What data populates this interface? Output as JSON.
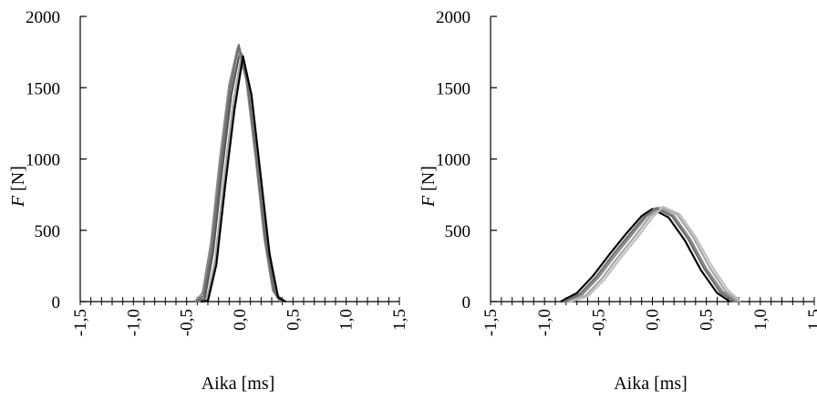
{
  "chart_data": [
    {
      "type": "line",
      "title": "",
      "xlabel": "Aika [ms]",
      "ylabel_italic": "F",
      "ylabel_unit": "[N]",
      "xlim": [
        -1.5,
        1.5
      ],
      "ylim": [
        0,
        2000
      ],
      "x_tick_labels": [
        "-1,5",
        "-1,0",
        "-0,5",
        "0,0",
        "0,5",
        "1,0",
        "1,5"
      ],
      "y_tick_labels": [
        "0",
        "500",
        "1000",
        "1500",
        "2000"
      ],
      "grid": false,
      "legend": "none",
      "series": [
        {
          "color": "#555555",
          "x": [
            -0.4,
            -0.33,
            -0.25,
            -0.17,
            -0.08,
            0.0,
            0.08,
            0.17,
            0.25,
            0.33,
            0.4
          ],
          "y": [
            0,
            20,
            350,
            900,
            1450,
            1750,
            1500,
            950,
            400,
            60,
            0
          ]
        },
        {
          "color": "#8a8a8a",
          "x": [
            -0.42,
            -0.35,
            -0.27,
            -0.19,
            -0.1,
            -0.02,
            0.06,
            0.15,
            0.23,
            0.31,
            0.38
          ],
          "y": [
            0,
            60,
            420,
            980,
            1520,
            1780,
            1560,
            1000,
            450,
            80,
            0
          ]
        },
        {
          "color": "#a5a5a5",
          "x": [
            -0.38,
            -0.31,
            -0.23,
            -0.15,
            -0.06,
            0.02,
            0.1,
            0.19,
            0.27,
            0.35,
            0.42
          ],
          "y": [
            0,
            10,
            300,
            850,
            1400,
            1740,
            1480,
            900,
            380,
            50,
            0
          ]
        },
        {
          "color": "#6f6f6f",
          "x": [
            -0.41,
            -0.34,
            -0.26,
            -0.18,
            -0.09,
            -0.01,
            0.07,
            0.16,
            0.24,
            0.32,
            0.39
          ],
          "y": [
            0,
            40,
            380,
            940,
            1490,
            1800,
            1540,
            980,
            420,
            70,
            0
          ]
        },
        {
          "color": "#000000",
          "x": [
            -0.37,
            -0.3,
            -0.22,
            -0.14,
            -0.05,
            0.03,
            0.11,
            0.2,
            0.28,
            0.36,
            0.43
          ],
          "y": [
            0,
            5,
            260,
            800,
            1350,
            1720,
            1450,
            860,
            330,
            30,
            0
          ]
        }
      ]
    },
    {
      "type": "line",
      "title": "",
      "xlabel": "Aika [ms]",
      "ylabel_italic": "F",
      "ylabel_unit": "[N]",
      "xlim": [
        -1.5,
        1.5
      ],
      "ylim": [
        0,
        2000
      ],
      "x_tick_labels": [
        "-1,5",
        "-1,0",
        "-0,5",
        "0,0",
        "0,5",
        "1,0",
        "1,5"
      ],
      "y_tick_labels": [
        "0",
        "500",
        "1000",
        "1500",
        "2000"
      ],
      "grid": false,
      "legend": "none",
      "series": [
        {
          "color": "#000000",
          "x": [
            -0.85,
            -0.7,
            -0.55,
            -0.4,
            -0.25,
            -0.1,
            0.0,
            0.15,
            0.3,
            0.45,
            0.6,
            0.72
          ],
          "y": [
            0,
            60,
            180,
            330,
            470,
            600,
            650,
            590,
            430,
            220,
            60,
            0
          ]
        },
        {
          "color": "#8a8a8a",
          "x": [
            -0.8,
            -0.65,
            -0.5,
            -0.35,
            -0.2,
            -0.05,
            0.05,
            0.2,
            0.35,
            0.5,
            0.65,
            0.78
          ],
          "y": [
            0,
            50,
            170,
            320,
            460,
            600,
            660,
            600,
            440,
            230,
            70,
            0
          ]
        },
        {
          "color": "#a5a5a5",
          "x": [
            -0.78,
            -0.62,
            -0.47,
            -0.32,
            -0.17,
            -0.02,
            0.08,
            0.23,
            0.38,
            0.53,
            0.68,
            0.8
          ],
          "y": [
            0,
            40,
            160,
            310,
            450,
            600,
            660,
            610,
            450,
            240,
            70,
            0
          ]
        },
        {
          "color": "#6f6f6f",
          "x": [
            -0.82,
            -0.67,
            -0.52,
            -0.37,
            -0.22,
            -0.07,
            0.03,
            0.18,
            0.33,
            0.48,
            0.63,
            0.76
          ],
          "y": [
            0,
            55,
            175,
            325,
            465,
            600,
            655,
            600,
            440,
            230,
            65,
            0
          ]
        },
        {
          "color": "#c0c0c0",
          "x": [
            -0.76,
            -0.6,
            -0.45,
            -0.3,
            -0.15,
            0.0,
            0.1,
            0.25,
            0.4,
            0.55,
            0.7,
            0.82
          ],
          "y": [
            0,
            35,
            150,
            300,
            440,
            590,
            665,
            615,
            455,
            250,
            80,
            0
          ]
        }
      ]
    }
  ]
}
